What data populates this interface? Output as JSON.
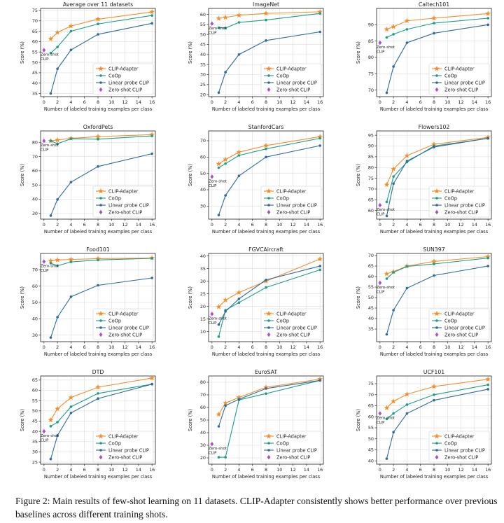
{
  "caption": "Figure 2: Main results of few-shot learning on 11 datasets. CLIP-Adapter consistently shows better performance over previous baselines across different training shots.",
  "legend_labels": [
    "CLIP-Adapter",
    "CoOp",
    "Linear probe CLIP",
    "Zero-shot CLIP"
  ],
  "zero_shot_annotation": "Zero-shot\nCLIP",
  "colors": {
    "clip_adapter": "#f28e2b",
    "coop": "#1a9e8a",
    "linear_probe": "#2c6aa0",
    "zero_shot": "#b04fc9"
  },
  "chart_data": [
    {
      "type": "line",
      "title": "Average over 11 datasets",
      "xlabel": "Number of labeled training examples per class",
      "ylabel": "Score (%)",
      "xlim": [
        -0.5,
        16.5
      ],
      "xticks": [
        0,
        2,
        4,
        6,
        8,
        10,
        12,
        14,
        16
      ],
      "ylim": [
        33.5,
        76
      ],
      "yticks": [
        35,
        40,
        45,
        50,
        55,
        60,
        65,
        70,
        75
      ],
      "grid": true,
      "legend": "lower-right",
      "x": [
        1,
        2,
        4,
        8,
        16
      ],
      "series": [
        {
          "name": "CLIP-Adapter",
          "values": [
            61.3,
            64.4,
            67.5,
            70.8,
            74.3
          ]
        },
        {
          "name": "CoOp",
          "values": [
            54.5,
            57.4,
            65.0,
            68.5,
            72.6
          ]
        },
        {
          "name": "Linear probe CLIP",
          "values": [
            35.0,
            46.9,
            56.0,
            63.5,
            68.8
          ]
        }
      ],
      "zero_shot": {
        "x": 0,
        "y": 55.9
      }
    },
    {
      "type": "line",
      "title": "ImageNet",
      "xlabel": "Number of labeled training examples per class",
      "ylabel": "Score (%)",
      "xlim": [
        -0.5,
        16.5
      ],
      "xticks": [
        0,
        2,
        4,
        6,
        8,
        10,
        12,
        14,
        16
      ],
      "ylim": [
        19,
        63
      ],
      "yticks": [
        20,
        25,
        30,
        35,
        40,
        45,
        50,
        55,
        60
      ],
      "grid": true,
      "legend": "lower-right",
      "x": [
        1,
        2,
        4,
        8,
        16
      ],
      "series": [
        {
          "name": "CLIP-Adapter",
          "values": [
            58.0,
            58.5,
            59.6,
            60.5,
            61.3
          ]
        },
        {
          "name": "CoOp",
          "values": [
            53.4,
            53.2,
            56.0,
            57.2,
            60.5
          ]
        },
        {
          "name": "Linear probe CLIP",
          "values": [
            21.0,
            31.2,
            40.0,
            47.0,
            51.3
          ]
        }
      ],
      "zero_shot": {
        "x": 0,
        "y": 55.4
      }
    },
    {
      "type": "line",
      "title": "Caltech101",
      "xlabel": "Number of labeled training examples per class",
      "ylabel": "Score (%)",
      "xlim": [
        -0.5,
        16.5
      ],
      "xticks": [
        0,
        2,
        4,
        6,
        8,
        10,
        12,
        14,
        16
      ],
      "ylim": [
        68,
        95
      ],
      "yticks": [
        70,
        75,
        80,
        85,
        90
      ],
      "grid": true,
      "legend": "lower-right",
      "x": [
        1,
        2,
        4,
        8,
        16
      ],
      "series": [
        {
          "name": "CLIP-Adapter",
          "values": [
            88.6,
            89.4,
            91.2,
            92.0,
            93.4
          ]
        },
        {
          "name": "CoOp",
          "values": [
            86.1,
            87.1,
            88.6,
            90.5,
            92.0
          ]
        },
        {
          "name": "Linear probe CLIP",
          "values": [
            69.2,
            77.2,
            84.5,
            87.4,
            90.0
          ]
        }
      ],
      "zero_shot": {
        "x": 0,
        "y": 84.5
      }
    },
    {
      "type": "line",
      "title": "OxfordPets",
      "xlabel": "Number of labeled training examples per class",
      "ylabel": "Score (%)",
      "xlim": [
        -0.5,
        16.5
      ],
      "xticks": [
        0,
        2,
        4,
        6,
        8,
        10,
        12,
        14,
        16
      ],
      "ylim": [
        26,
        88
      ],
      "yticks": [
        30,
        40,
        50,
        60,
        70,
        80
      ],
      "grid": true,
      "legend": "lower-right",
      "x": [
        1,
        2,
        4,
        8,
        16
      ],
      "series": [
        {
          "name": "CLIP-Adapter",
          "values": [
            81.0,
            81.6,
            82.8,
            84.0,
            85.4
          ]
        },
        {
          "name": "CoOp",
          "values": [
            81.0,
            79.0,
            82.5,
            82.2,
            84.5
          ]
        },
        {
          "name": "Linear probe CLIP",
          "values": [
            28.5,
            39.8,
            52.0,
            63.0,
            72.0
          ]
        }
      ],
      "zero_shot": {
        "x": 0,
        "y": 81.0
      }
    },
    {
      "type": "line",
      "title": "StanfordCars",
      "xlabel": "Number of labeled training examples per class",
      "ylabel": "Score (%)",
      "xlim": [
        -0.5,
        16.5
      ],
      "xticks": [
        0,
        2,
        4,
        6,
        8,
        10,
        12,
        14,
        16
      ],
      "ylim": [
        22,
        76
      ],
      "yticks": [
        30,
        40,
        50,
        60,
        70
      ],
      "grid": true,
      "legend": "lower-right",
      "x": [
        1,
        2,
        4,
        8,
        16
      ],
      "series": [
        {
          "name": "CLIP-Adapter",
          "values": [
            55.8,
            58.5,
            63.0,
            67.0,
            72.5
          ]
        },
        {
          "name": "CoOp",
          "values": [
            53.5,
            56.0,
            61.0,
            65.0,
            71.5
          ]
        },
        {
          "name": "Linear probe CLIP",
          "values": [
            24.5,
            36.5,
            48.5,
            60.0,
            67.0
          ]
        }
      ],
      "zero_shot": {
        "x": 0,
        "y": 48.0
      }
    },
    {
      "type": "line",
      "title": "Flowers102",
      "xlabel": "Number of labeled training examples per class",
      "ylabel": "Score (%)",
      "xlim": [
        -0.5,
        16.5
      ],
      "xticks": [
        0,
        2,
        4,
        6,
        8,
        10,
        12,
        14,
        16
      ],
      "ylim": [
        56,
        97
      ],
      "yticks": [
        60,
        65,
        70,
        75,
        80,
        85,
        90,
        95
      ],
      "grid": true,
      "legend": "lower-right",
      "x": [
        1,
        2,
        4,
        8,
        16
      ],
      "series": [
        {
          "name": "CLIP-Adapter",
          "values": [
            72.0,
            79.3,
            85.5,
            90.8,
            94.0
          ]
        },
        {
          "name": "CoOp",
          "values": [
            64.0,
            75.8,
            82.5,
            90.0,
            93.5
          ]
        },
        {
          "name": "Linear probe CLIP",
          "values": [
            57.5,
            72.5,
            83.0,
            89.5,
            93.6
          ]
        }
      ],
      "zero_shot": {
        "x": 0,
        "y": 62.5
      }
    },
    {
      "type": "line",
      "title": "Food101",
      "xlabel": "Number of labeled training examples per class",
      "ylabel": "Score (%)",
      "xlim": [
        -0.5,
        16.5
      ],
      "xticks": [
        0,
        2,
        4,
        6,
        8,
        10,
        12,
        14,
        16
      ],
      "ylim": [
        26,
        80
      ],
      "yticks": [
        30,
        40,
        50,
        60,
        70
      ],
      "grid": true,
      "legend": "lower-right",
      "x": [
        1,
        2,
        4,
        8,
        16
      ],
      "series": [
        {
          "name": "CLIP-Adapter",
          "values": [
            75.5,
            76.0,
            76.3,
            76.8,
            77.2
          ]
        },
        {
          "name": "CoOp",
          "values": [
            74.0,
            72.5,
            74.8,
            76.0,
            77.0
          ]
        },
        {
          "name": "Linear probe CLIP",
          "values": [
            28.5,
            41.0,
            53.5,
            60.5,
            65.0
          ]
        }
      ],
      "zero_shot": {
        "x": 0,
        "y": 75.0
      }
    },
    {
      "type": "line",
      "title": "FGVCAircraft",
      "xlabel": "Number of labeled training examples per class",
      "ylabel": "Score (%)",
      "xlim": [
        -0.5,
        16.5
      ],
      "xticks": [
        0,
        2,
        4,
        6,
        8,
        10,
        12,
        14,
        16
      ],
      "ylim": [
        6,
        41
      ],
      "yticks": [
        10,
        15,
        20,
        25,
        30,
        35,
        40
      ],
      "grid": true,
      "legend": "lower-right",
      "x": [
        1,
        2,
        4,
        8,
        16
      ],
      "series": [
        {
          "name": "CLIP-Adapter",
          "values": [
            19.8,
            22.5,
            25.5,
            30.0,
            38.8
          ]
        },
        {
          "name": "CoOp",
          "values": [
            8.0,
            18.5,
            21.5,
            27.5,
            34.5
          ]
        },
        {
          "name": "Linear probe CLIP",
          "values": [
            12.8,
            18.0,
            23.0,
            30.5,
            36.0
          ]
        }
      ],
      "zero_shot": {
        "x": 0,
        "y": 17.0
      }
    },
    {
      "type": "line",
      "title": "SUN397",
      "xlabel": "Number of labeled training examples per class",
      "ylabel": "Score (%)",
      "xlim": [
        -0.5,
        16.5
      ],
      "xticks": [
        0,
        2,
        4,
        6,
        8,
        10,
        12,
        14,
        16
      ],
      "ylim": [
        29,
        71
      ],
      "yticks": [
        35,
        40,
        45,
        50,
        55,
        60,
        65,
        70
      ],
      "grid": true,
      "legend": "lower-right",
      "x": [
        1,
        2,
        4,
        8,
        16
      ],
      "series": [
        {
          "name": "CLIP-Adapter",
          "values": [
            61.3,
            62.3,
            65.0,
            67.2,
            69.5
          ]
        },
        {
          "name": "CoOp",
          "values": [
            59.0,
            62.0,
            64.8,
            66.0,
            68.8
          ]
        },
        {
          "name": "Linear probe CLIP",
          "values": [
            32.5,
            44.0,
            54.5,
            60.5,
            65.0
          ]
        }
      ],
      "zero_shot": {
        "x": 0,
        "y": 57.0
      }
    },
    {
      "type": "line",
      "title": "DTD",
      "xlabel": "Number of labeled training examples per class",
      "ylabel": "Score (%)",
      "xlim": [
        -0.5,
        16.5
      ],
      "xticks": [
        0,
        2,
        4,
        6,
        8,
        10,
        12,
        14,
        16
      ],
      "ylim": [
        24,
        67
      ],
      "yticks": [
        25,
        30,
        35,
        40,
        45,
        50,
        55,
        60,
        65
      ],
      "grid": true,
      "legend": "lower-right",
      "x": [
        1,
        2,
        4,
        8,
        16
      ],
      "series": [
        {
          "name": "CLIP-Adapter",
          "values": [
            45.5,
            51.0,
            56.5,
            61.5,
            66.0
          ]
        },
        {
          "name": "CoOp",
          "values": [
            42.5,
            44.5,
            52.0,
            58.5,
            63.0
          ]
        },
        {
          "name": "Linear probe CLIP",
          "values": [
            26.5,
            38.0,
            49.0,
            56.0,
            63.0
          ]
        }
      ],
      "zero_shot": {
        "x": 0,
        "y": 40.0
      }
    },
    {
      "type": "line",
      "title": "EuroSAT",
      "xlabel": "Number of labeled training examples per class",
      "ylabel": "Score (%)",
      "xlim": [
        -0.5,
        16.5
      ],
      "xticks": [
        0,
        2,
        4,
        6,
        8,
        10,
        12,
        14,
        16
      ],
      "ylim": [
        15,
        85
      ],
      "yticks": [
        20,
        30,
        40,
        50,
        60,
        70,
        80
      ],
      "grid": true,
      "legend": "lower-right",
      "x": [
        1,
        2,
        4,
        8,
        16
      ],
      "series": [
        {
          "name": "CLIP-Adapter",
          "values": [
            54.5,
            63.5,
            68.0,
            76.0,
            82.5
          ]
        },
        {
          "name": "CoOp",
          "values": [
            20.5,
            20.5,
            66.0,
            71.0,
            81.5
          ]
        },
        {
          "name": "Linear probe CLIP",
          "values": [
            45.0,
            61.5,
            66.5,
            75.0,
            81.5
          ]
        }
      ],
      "zero_shot": {
        "x": 0,
        "y": 31.0
      }
    },
    {
      "type": "line",
      "title": "UCF101",
      "xlabel": "Number of labeled training examples per class",
      "ylabel": "Score (%)",
      "xlim": [
        -0.5,
        16.5
      ],
      "xticks": [
        0,
        2,
        4,
        6,
        8,
        10,
        12,
        14,
        16
      ],
      "ylim": [
        38.5,
        78.5
      ],
      "yticks": [
        40,
        45,
        50,
        55,
        60,
        65,
        70,
        75
      ],
      "grid": true,
      "legend": "lower-right",
      "x": [
        1,
        2,
        4,
        8,
        16
      ],
      "series": [
        {
          "name": "CLIP-Adapter",
          "values": [
            64.0,
            67.0,
            70.2,
            73.7,
            77.0
          ]
        },
        {
          "name": "CoOp",
          "values": [
            59.0,
            61.5,
            65.5,
            70.0,
            74.5
          ]
        },
        {
          "name": "Linear probe CLIP",
          "values": [
            41.0,
            53.0,
            61.5,
            67.5,
            72.5
          ]
        }
      ],
      "zero_shot": {
        "x": 0,
        "y": 61.5
      }
    }
  ]
}
